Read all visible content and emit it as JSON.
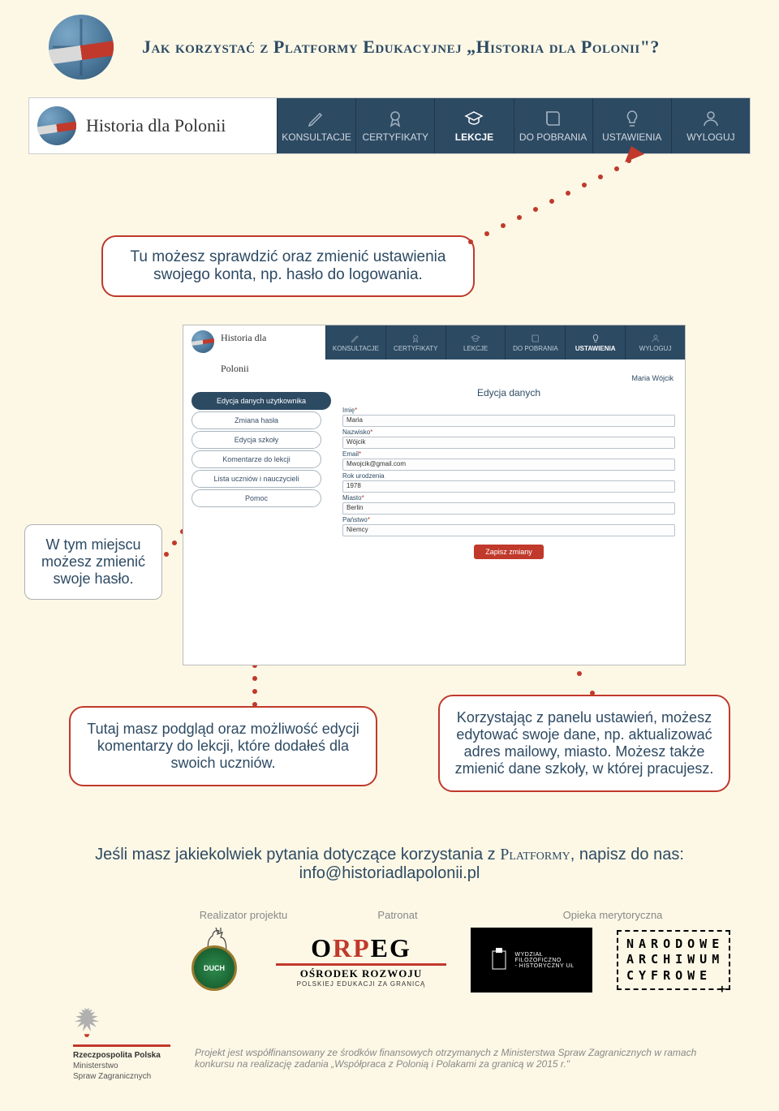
{
  "header": {
    "title": "Jak korzystać z Platformy Edukacyjnej „Historia dla Polonii\"?"
  },
  "navbar": {
    "brand": "Historia dla Polonii",
    "items": [
      {
        "label": "KONSULTACJE",
        "icon": "pencil"
      },
      {
        "label": "CERTYFIKATY",
        "icon": "medal"
      },
      {
        "label": "LEKCJE",
        "icon": "grad-cap",
        "active": true
      },
      {
        "label": "DO POBRANIA",
        "icon": "book"
      },
      {
        "label": "USTAWIENIA",
        "icon": "bulb"
      },
      {
        "label": "WYLOGUJ",
        "icon": "user"
      }
    ]
  },
  "callouts": {
    "c1": "Tu możesz sprawdzić oraz zmienić ustawienia swojego konta, np. hasło do logowania.",
    "n1": "W tym miejscu możesz zmienić swoje hasło.",
    "c2": "Tutaj masz podgląd oraz możliwość edycji komentarzy do lekcji, które dodałeś dla swoich uczniów.",
    "c3": "Korzystając z panelu ustawień, możesz edytować swoje dane, np. aktualizować adres mailowy, miasto. Możesz także zmienić dane szkoły, w której pracujesz."
  },
  "mini": {
    "brand": "Historia dla Polonii",
    "nav": [
      "KONSULTACJE",
      "CERTYFIKATY",
      "LEKCJE",
      "DO POBRANIA",
      "USTAWIENIA",
      "WYLOGUJ"
    ],
    "nav_active_index": 4,
    "user": "Maria Wójcik",
    "sidebar": [
      {
        "label": "Edycja danych użytkownika",
        "active": true
      },
      {
        "label": "Zmiana hasła"
      },
      {
        "label": "Edycja szkoły"
      },
      {
        "label": "Komentarze do lekcji"
      },
      {
        "label": "Lista uczniów i nauczycieli"
      },
      {
        "label": "Pomoc"
      }
    ],
    "form": {
      "heading": "Edycja danych",
      "fields": [
        {
          "label": "Imię",
          "required": true,
          "value": "Maria"
        },
        {
          "label": "Nazwisko",
          "required": true,
          "value": "Wójcik"
        },
        {
          "label": "Email",
          "required": true,
          "value": "Mwojcik@gmail.com"
        },
        {
          "label": "Rok urodzenia",
          "required": false,
          "value": "1978"
        },
        {
          "label": "Miasto",
          "required": true,
          "value": "Berlin"
        },
        {
          "label": "Państwo",
          "required": true,
          "value": "Niemcy"
        }
      ],
      "save": "Zapisz zmiany"
    }
  },
  "contact": {
    "line1_a": "Jeśli masz jakiekolwiek pytania dotyczące korzystania z ",
    "line1_b": "Platformy",
    "line1_c": ", napisz do nas:",
    "email": "info@historiadlapolonii.pl"
  },
  "partners": {
    "labels": {
      "l1": "Realizator projektu",
      "l2": "Patronat",
      "l3": "Opieka merytoryczna"
    },
    "duch": "DUCH",
    "orpeg": {
      "big_pre": "O",
      "big_red": "RP",
      "big_post": "EG",
      "sub": "OŚRODEK ROZWOJU",
      "sub2": "POLSKIEJ EDUKACJI ZA GRANICĄ"
    },
    "wfh": "WYDZIAŁ\nFILOZOFICZNO\n- HISTORYCZNY UŁ",
    "nac": "NARODOWE\nARCHIWUM\nCYFROWE"
  },
  "ministry": {
    "l1": "Rzeczpospolita Polska",
    "l2": "Ministerstwo",
    "l3": "Spraw Zagranicznych"
  },
  "project_note": "Projekt jest współfinansowany ze środków finansowych otrzymanych z Ministerstwa Spraw Zagranicznych w ramach konkursu na realizację zadania „Współpraca z Polonią i Polakami za granicą w 2015 r.\"",
  "colors": {
    "bg": "#fdf8e6",
    "navy": "#2d4a63",
    "red": "#c0392b",
    "grey": "#888888"
  }
}
